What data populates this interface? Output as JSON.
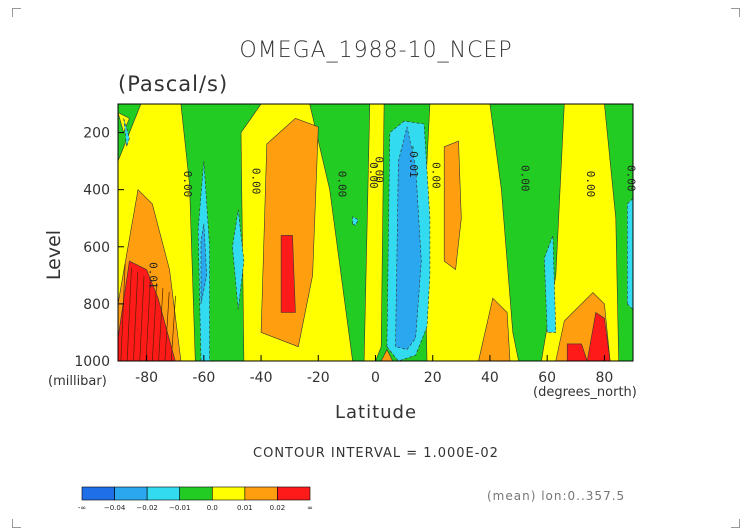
{
  "title": "OMEGA_1988-10_NCEP",
  "units": "(Pascal/s)",
  "chart_data": {
    "type": "heatmap",
    "title": "OMEGA_1988-10_NCEP",
    "ylabel": "Level",
    "y_unit": "(millibar)",
    "xlabel": "Latitude",
    "x_unit": "(degrees_north)",
    "xlim": [
      -90,
      90
    ],
    "ylim": [
      1000,
      100
    ],
    "x_ticks": [
      "-80",
      "-60",
      "-40",
      "-20",
      "0",
      "20",
      "40",
      "60",
      "80"
    ],
    "x_tick_values": [
      -80,
      -60,
      -40,
      -20,
      0,
      20,
      40,
      60,
      80
    ],
    "y_ticks": [
      "200",
      "400",
      "600",
      "800",
      "1000"
    ],
    "y_tick_values": [
      200,
      400,
      600,
      800,
      1000
    ],
    "contour_labels": [
      "0.00",
      "0.00",
      "0.00",
      "0.00",
      "0.00",
      "0.00",
      "0.00",
      "0.00",
      "0.00",
      "-0.01",
      "0.01"
    ],
    "colors": [
      "#1e6fe8",
      "#2aa7ee",
      "#33dbf0",
      "#22cc22",
      "#ffff00",
      "#ff9f10",
      "#ff1a1a"
    ],
    "levels": [
      -0.04,
      -0.02,
      -0.01,
      0.0,
      0.01,
      0.02
    ],
    "grid": false,
    "structure": {
      "field_units": "Pa/s",
      "note_regions": [
        {
          "lat": [
            -90,
            -70
          ],
          "level": [
            600,
            1000
          ],
          "value": 0.03
        },
        {
          "lat": [
            -33,
            -28
          ],
          "level": [
            550,
            850
          ],
          "value": 0.025
        },
        {
          "lat": [
            10,
            14
          ],
          "level": [
            150,
            950
          ],
          "value": -0.02
        },
        {
          "lat": [
            75,
            82
          ],
          "level": [
            820,
            1000
          ],
          "value": 0.025
        }
      ]
    }
  },
  "contour_interval": "CONTOUR INTERVAL = 1.000E-02",
  "colorbar": {
    "labels": [
      "-∞",
      "−0.04",
      "−0.02",
      "−0.01",
      "0.0",
      "0.01",
      "0.02",
      "∞"
    ]
  },
  "footer": "(mean) lon:0..357.5"
}
